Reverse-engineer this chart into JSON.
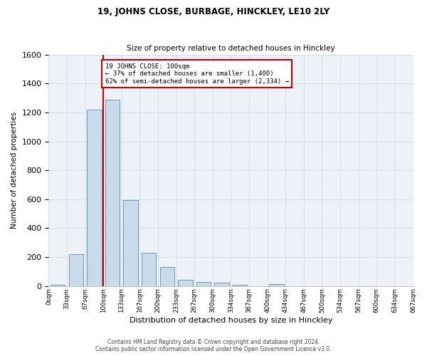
{
  "title1": "19, JOHNS CLOSE, BURBAGE, HINCKLEY, LE10 2LY",
  "title2": "Size of property relative to detached houses in Hinckley",
  "xlabel": "Distribution of detached houses by size in Hinckley",
  "ylabel": "Number of detached properties",
  "footer1": "Contains HM Land Registry data © Crown copyright and database right 2024.",
  "footer2": "Contains public sector information licensed under the Open Government Licence v3.0.",
  "annotation_line1": "19 JOHNS CLOSE: 100sqm",
  "annotation_line2": "← 37% of detached houses are smaller (1,400)",
  "annotation_line3": "62% of semi-detached houses are larger (2,334) →",
  "property_size_sqm": 3,
  "bar_width": 0.8,
  "bin_labels": [
    "0sqm",
    "33sqm",
    "67sqm",
    "100sqm",
    "133sqm",
    "167sqm",
    "200sqm",
    "233sqm",
    "267sqm",
    "300sqm",
    "334sqm",
    "367sqm",
    "400sqm",
    "434sqm",
    "467sqm",
    "500sqm",
    "534sqm",
    "567sqm",
    "600sqm",
    "634sqm",
    "667sqm"
  ],
  "bar_values": [
    10,
    220,
    1220,
    1290,
    595,
    230,
    130,
    45,
    30,
    25,
    10,
    0,
    15,
    0,
    0,
    0,
    0,
    0,
    0,
    0
  ],
  "bar_color": "#c9daea",
  "bar_edge_color": "#6699bb",
  "grid_color": "#d5dfe8",
  "background_color": "#eef2f8",
  "vline_color": "#cc0000",
  "annotation_box_color": "#cc0000",
  "ylim": [
    0,
    1600
  ],
  "yticks": [
    0,
    200,
    400,
    600,
    800,
    1000,
    1200,
    1400,
    1600
  ],
  "num_bins": 20
}
